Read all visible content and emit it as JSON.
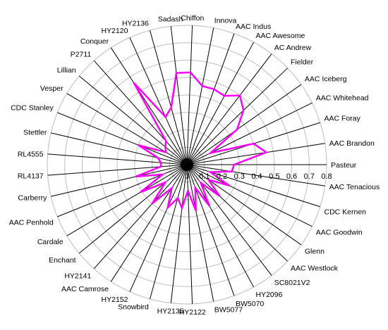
{
  "chart_data": {
    "type": "radar",
    "title": "",
    "rlim": [
      0,
      0.8
    ],
    "radial_ticks": [
      "0",
      "0.1",
      "0.2",
      "0.3",
      "0.4",
      "0.5",
      "0.6",
      "0.7",
      "0.8"
    ],
    "grid": true,
    "legend": "none",
    "series_color": "#ff00ff",
    "categories": [
      "Pasteur",
      "AAC Brandon",
      "AAC Foray",
      "AAC Whitehead",
      "AAC Iceberg",
      "Fielder",
      "AC Andrew",
      "AAC Awesome",
      "AAC Indus",
      "Innova",
      "Chiffon",
      "Sadash",
      "HY2136",
      "HY2120",
      "Conquer",
      "P2711",
      "Lillian",
      "Vesper",
      "CDC Stanley",
      "Stettler",
      "RL4555",
      "RL4137",
      "Carberry",
      "AAC Penhold",
      "Cardale",
      "Enchant",
      "HY2141",
      "AAC Camrose",
      "HY2152",
      "Snowbird",
      "HY2135",
      "HY2122",
      "BW5077",
      "BW5070",
      "HY2096",
      "SC8021V2",
      "AAC Westlock",
      "Glenn",
      "AAC Goodwin",
      "CDC Kernen",
      "AAC Tenacious"
    ],
    "series": [
      {
        "values": [
          0.27,
          0.46,
          0.4,
          0.15,
          0.35,
          0.45,
          0.5,
          0.45,
          0.46,
          0.46,
          0.53,
          0.53,
          0.34,
          0.3,
          0.56,
          0.18,
          0.16,
          0.14,
          0.3,
          0.17,
          0.15,
          0.15,
          0.3,
          0.15,
          0.31,
          0.16,
          0.3,
          0.16,
          0.27,
          0.2,
          0.25,
          0.15,
          0.27,
          0.14,
          0.27,
          0.13,
          0.26,
          0.15,
          0.27,
          0.14,
          0.26
        ]
      }
    ]
  }
}
